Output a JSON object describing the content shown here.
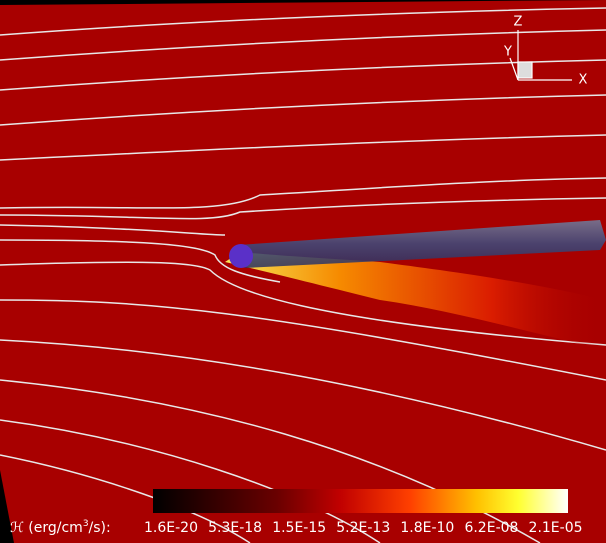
{
  "axes_triad": {
    "z": "Z",
    "y": "Y",
    "x": "X"
  },
  "colorbar": {
    "label_parts": [
      "ℋ (erg/cm",
      "3",
      "/s):"
    ],
    "ticks": [
      "1.6E-20",
      "5.3E-18",
      "1.5E-15",
      "5.2E-13",
      "1.8E-10",
      "6.2E-08",
      "2.1E-05"
    ]
  }
}
